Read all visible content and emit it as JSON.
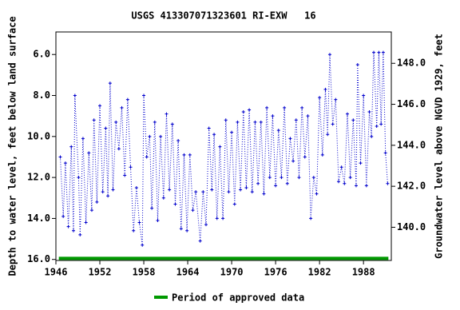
{
  "chart_data": {
    "type": "line",
    "title": "USGS 413307071323601 RI-EXW   16",
    "y_label": "Depth to water level, feet below land surface",
    "y2_label": "Groundwater level above NGVD 1929, feet",
    "xlim": [
      1946,
      1991.8
    ],
    "xticks": [
      1946,
      1952,
      1958,
      1964,
      1970,
      1976,
      1982,
      1988
    ],
    "ylim": [
      16.05,
      4.9
    ],
    "yticks": [
      {
        "value": 6,
        "label": "6.0"
      },
      {
        "value": 8,
        "label": "8.0"
      },
      {
        "value": 10,
        "label": "10.0"
      },
      {
        "value": 12,
        "label": "12.0"
      },
      {
        "value": 14,
        "label": "14.0"
      },
      {
        "value": 16,
        "label": "16.0"
      }
    ],
    "y2lim": [
      138.38,
      149.53
    ],
    "y2ticks": [
      {
        "value": 140,
        "label": "140.0"
      },
      {
        "value": 142,
        "label": "142.0"
      },
      {
        "value": 144,
        "label": "144.0"
      },
      {
        "value": 146,
        "label": "146.0"
      },
      {
        "value": 148,
        "label": "148.0"
      }
    ],
    "series": [
      {
        "color": "#0000cc",
        "x": [
          1946.6,
          1947.0,
          1947.3,
          1947.7,
          1948.1,
          1948.4,
          1948.6,
          1949.1,
          1949.3,
          1949.7,
          1950.1,
          1950.5,
          1950.9,
          1951.2,
          1951.6,
          1952.0,
          1952.4,
          1952.8,
          1953.1,
          1953.4,
          1953.8,
          1954.2,
          1954.6,
          1955.0,
          1955.4,
          1955.8,
          1956.2,
          1956.6,
          1957.0,
          1957.4,
          1957.8,
          1958.0,
          1958.4,
          1958.8,
          1959.1,
          1959.5,
          1959.9,
          1960.3,
          1960.7,
          1961.1,
          1961.5,
          1961.9,
          1962.3,
          1962.7,
          1963.1,
          1963.5,
          1963.9,
          1964.3,
          1964.7,
          1965.1,
          1965.7,
          1966.1,
          1966.5,
          1966.9,
          1967.3,
          1967.6,
          1968.0,
          1968.4,
          1968.8,
          1969.2,
          1969.6,
          1970.0,
          1970.4,
          1970.8,
          1971.2,
          1971.6,
          1972.0,
          1972.4,
          1972.8,
          1973.2,
          1973.6,
          1974.0,
          1974.4,
          1974.8,
          1975.2,
          1975.6,
          1976.0,
          1976.4,
          1976.8,
          1977.2,
          1977.6,
          1978.0,
          1978.4,
          1978.8,
          1979.2,
          1979.6,
          1980.0,
          1980.4,
          1980.8,
          1981.2,
          1981.6,
          1982.0,
          1982.4,
          1982.8,
          1983.1,
          1983.4,
          1983.8,
          1984.2,
          1984.6,
          1985.0,
          1985.4,
          1985.8,
          1986.2,
          1986.6,
          1987.0,
          1987.2,
          1987.6,
          1988.0,
          1988.4,
          1988.8,
          1989.1,
          1989.4,
          1989.8,
          1990.1,
          1990.4,
          1990.7,
          1991.0,
          1991.3
        ],
        "values": [
          11.0,
          13.9,
          11.3,
          14.4,
          10.5,
          14.6,
          8.0,
          12.0,
          14.8,
          10.1,
          14.2,
          10.8,
          13.6,
          9.2,
          13.2,
          8.5,
          12.7,
          9.6,
          12.9,
          7.4,
          12.6,
          9.3,
          10.6,
          8.6,
          11.9,
          8.2,
          11.5,
          14.6,
          12.5,
          14.2,
          15.3,
          8.0,
          11.0,
          10.0,
          13.5,
          9.3,
          14.1,
          10.0,
          13.0,
          8.9,
          12.6,
          9.4,
          13.3,
          10.2,
          14.5,
          10.9,
          14.6,
          10.9,
          13.6,
          12.7,
          15.1,
          12.7,
          14.3,
          9.6,
          12.6,
          9.9,
          14.0,
          10.5,
          14.0,
          9.2,
          12.7,
          9.8,
          13.3,
          9.3,
          12.6,
          8.8,
          12.5,
          8.7,
          12.7,
          9.3,
          12.3,
          9.3,
          12.8,
          8.6,
          12.0,
          9.0,
          12.4,
          9.7,
          12.0,
          8.6,
          12.3,
          10.1,
          11.2,
          9.2,
          12.0,
          8.6,
          11.0,
          9.0,
          14.0,
          12.0,
          12.8,
          8.1,
          10.9,
          7.7,
          9.9,
          6.0,
          9.4,
          8.2,
          12.2,
          11.5,
          12.3,
          8.9,
          12.0,
          9.2,
          12.4,
          6.5,
          11.3,
          8.0,
          12.4,
          8.8,
          10.0,
          5.9,
          9.5,
          5.9,
          9.4,
          5.9,
          10.8,
          12.3
        ]
      }
    ],
    "approved_period": {
      "name": "Period of approved data",
      "color": "#009900",
      "x": [
        1946.4,
        1991.4
      ],
      "values": [
        15.95,
        15.95
      ]
    }
  }
}
